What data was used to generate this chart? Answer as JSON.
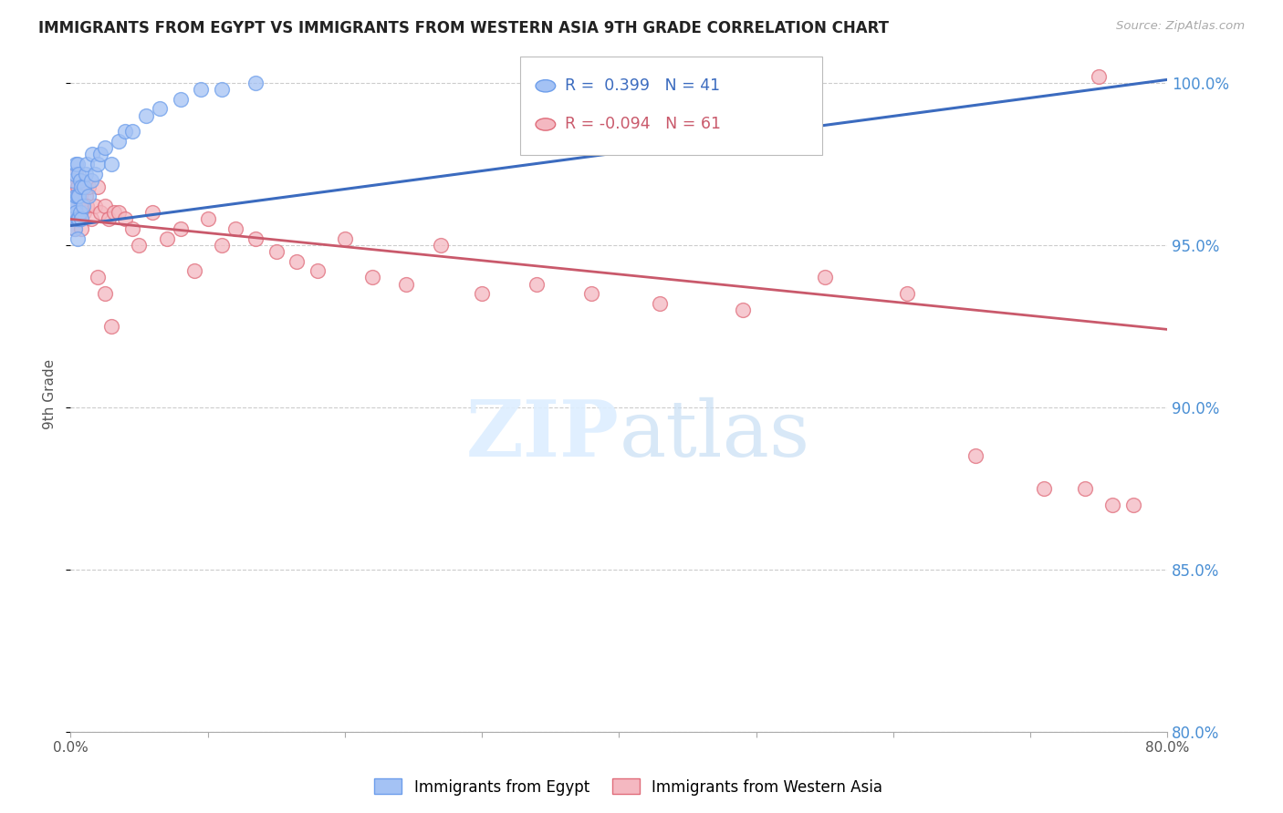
{
  "title": "IMMIGRANTS FROM EGYPT VS IMMIGRANTS FROM WESTERN ASIA 9TH GRADE CORRELATION CHART",
  "source": "Source: ZipAtlas.com",
  "ylabel": "9th Grade",
  "xlim": [
    0.0,
    0.8
  ],
  "ylim": [
    0.818,
    1.008
  ],
  "yticks": [
    0.8,
    0.85,
    0.9,
    0.95,
    1.0
  ],
  "ytick_labels": [
    "80.0%",
    "85.0%",
    "90.0%",
    "95.0%",
    "100.0%"
  ],
  "xticks": [
    0.0,
    0.1,
    0.2,
    0.3,
    0.4,
    0.5,
    0.6,
    0.7,
    0.8
  ],
  "xtick_labels": [
    "0.0%",
    "",
    "",
    "",
    "",
    "",
    "",
    "",
    "80.0%"
  ],
  "blue_R": 0.399,
  "blue_N": 41,
  "pink_R": -0.094,
  "pink_N": 61,
  "blue_color": "#a4c2f4",
  "pink_color": "#f4b8c1",
  "blue_edge_color": "#6d9eeb",
  "pink_edge_color": "#e06c7a",
  "blue_line_color": "#3b6bbf",
  "pink_line_color": "#c9596b",
  "right_tick_color": "#4a8fd4",
  "grid_color": "#cccccc",
  "background_color": "#ffffff",
  "blue_scatter_x": [
    0.001,
    0.002,
    0.002,
    0.003,
    0.003,
    0.003,
    0.004,
    0.004,
    0.004,
    0.005,
    0.005,
    0.005,
    0.005,
    0.006,
    0.006,
    0.006,
    0.007,
    0.007,
    0.008,
    0.008,
    0.009,
    0.01,
    0.011,
    0.012,
    0.013,
    0.015,
    0.016,
    0.018,
    0.02,
    0.022,
    0.025,
    0.03,
    0.035,
    0.04,
    0.045,
    0.055,
    0.065,
    0.08,
    0.095,
    0.11,
    0.135
  ],
  "blue_scatter_y": [
    0.958,
    0.963,
    0.97,
    0.955,
    0.962,
    0.972,
    0.96,
    0.965,
    0.975,
    0.952,
    0.958,
    0.965,
    0.975,
    0.958,
    0.965,
    0.972,
    0.96,
    0.97,
    0.958,
    0.968,
    0.962,
    0.968,
    0.972,
    0.975,
    0.965,
    0.97,
    0.978,
    0.972,
    0.975,
    0.978,
    0.98,
    0.975,
    0.982,
    0.985,
    0.985,
    0.99,
    0.992,
    0.995,
    0.998,
    0.998,
    1.0
  ],
  "pink_scatter_x": [
    0.001,
    0.002,
    0.003,
    0.003,
    0.004,
    0.004,
    0.005,
    0.005,
    0.006,
    0.006,
    0.007,
    0.007,
    0.008,
    0.008,
    0.009,
    0.01,
    0.011,
    0.012,
    0.013,
    0.015,
    0.018,
    0.02,
    0.022,
    0.025,
    0.028,
    0.032,
    0.035,
    0.04,
    0.045,
    0.05,
    0.06,
    0.07,
    0.08,
    0.09,
    0.1,
    0.11,
    0.12,
    0.135,
    0.15,
    0.165,
    0.18,
    0.2,
    0.22,
    0.245,
    0.27,
    0.3,
    0.34,
    0.38,
    0.43,
    0.49,
    0.55,
    0.61,
    0.66,
    0.71,
    0.74,
    0.76,
    0.775,
    0.02,
    0.025,
    0.03,
    0.75
  ],
  "pink_scatter_y": [
    0.958,
    0.962,
    0.955,
    0.968,
    0.96,
    0.972,
    0.958,
    0.968,
    0.96,
    0.965,
    0.958,
    0.965,
    0.955,
    0.962,
    0.968,
    0.96,
    0.965,
    0.962,
    0.968,
    0.958,
    0.962,
    0.968,
    0.96,
    0.962,
    0.958,
    0.96,
    0.96,
    0.958,
    0.955,
    0.95,
    0.96,
    0.952,
    0.955,
    0.942,
    0.958,
    0.95,
    0.955,
    0.952,
    0.948,
    0.945,
    0.942,
    0.952,
    0.94,
    0.938,
    0.95,
    0.935,
    0.938,
    0.935,
    0.932,
    0.93,
    0.94,
    0.935,
    0.885,
    0.875,
    0.875,
    0.87,
    0.87,
    0.94,
    0.935,
    0.925,
    1.002
  ],
  "blue_trend_x": [
    0.0,
    0.8
  ],
  "blue_trend_y": [
    0.956,
    1.001
  ],
  "pink_trend_x": [
    0.0,
    0.8
  ],
  "pink_trend_y": [
    0.958,
    0.924
  ]
}
